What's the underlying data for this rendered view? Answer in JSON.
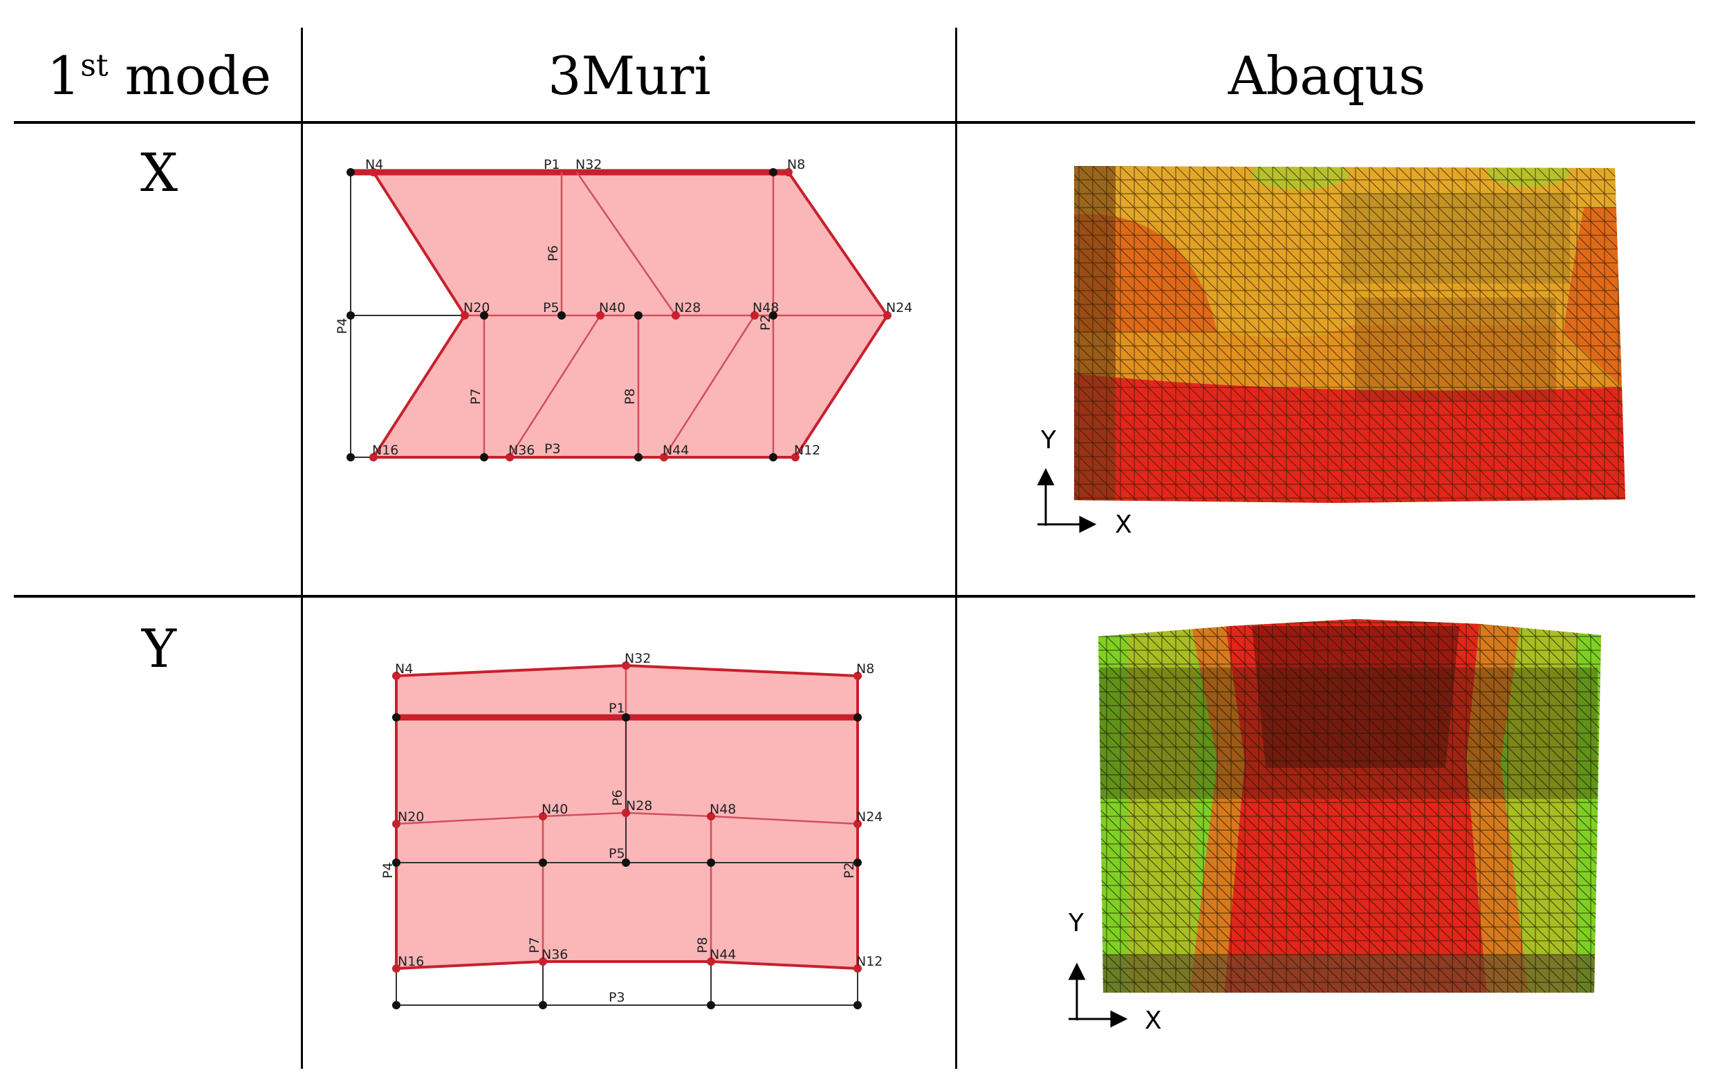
{
  "table": {
    "headers": {
      "mode": "1",
      "mode_sup": "st",
      "mode_rest": " mode",
      "col2": "3Muri",
      "col3": "Abaqus"
    },
    "rows": [
      {
        "label": "X"
      },
      {
        "label": "Y"
      }
    ]
  },
  "muri_x": {
    "labels": {
      "N4": "N4",
      "P1": "P1",
      "N32": "N32",
      "N8": "N8",
      "P6": "P6",
      "N20": "N20",
      "P5": "P5",
      "N40": "N40",
      "N28": "N28",
      "N48": "N48",
      "P2": "P2",
      "N24": "N24",
      "P4": "P4",
      "P7": "P7",
      "P8": "P8",
      "N16": "N16",
      "N36": "N36",
      "P3": "P3",
      "N44": "N44",
      "N12": "N12"
    }
  },
  "muri_y": {
    "labels": {
      "N4": "N4",
      "N32": "N32",
      "N8": "N8",
      "P1": "P1",
      "N20": "N20",
      "N40": "N40",
      "N28": "N28",
      "N48": "N48",
      "N24": "N24",
      "P6": "P6",
      "P5": "P5",
      "P4": "P4",
      "P2": "P2",
      "P7": "P7",
      "P8": "P8",
      "N16": "N16",
      "N36": "N36",
      "N44": "N44",
      "N12": "N12",
      "P3": "P3"
    }
  },
  "abaqus_x": {
    "axis_y": "Y",
    "axis_x": "X"
  },
  "abaqus_y": {
    "axis_y": "Y",
    "axis_x": "X"
  },
  "colors": {
    "deformed_fill": "#fbb6b8",
    "deformed_edge": "#c8202c",
    "undeformed": "#222222"
  }
}
